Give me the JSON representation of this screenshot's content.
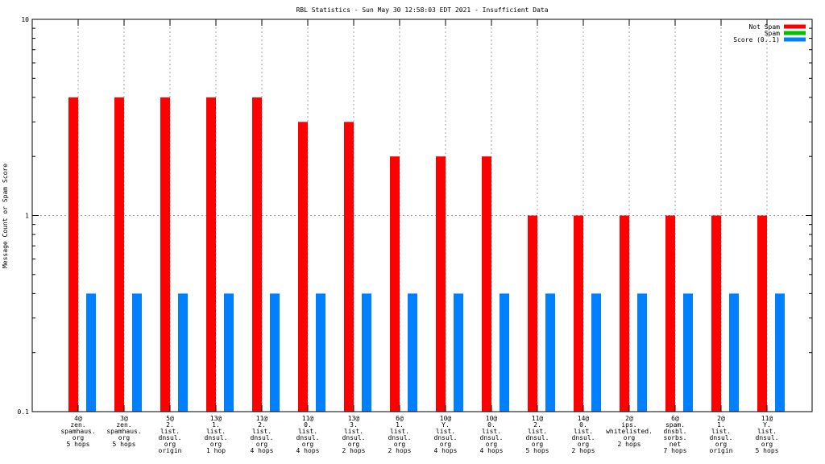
{
  "chart_data": {
    "type": "bar",
    "title": "RBL Statistics - Sun May 30 12:58:03 EDT 2021 - Insufficient Data",
    "ylabel": "Message Count or Spam Score",
    "xlabel": "",
    "yscale": "log",
    "ylim": [
      0.1,
      10
    ],
    "ytick_values": [
      0.1,
      1,
      10
    ],
    "ytick_labels": [
      "0.1",
      "1",
      "10"
    ],
    "grid": true,
    "legend_position": "top-right",
    "categories": [
      [
        "4@",
        "zen.",
        "spamhaus.",
        "org",
        "5 hops"
      ],
      [
        "3@",
        "zen.",
        "spamhaus.",
        "org",
        "5 hops"
      ],
      [
        "5@",
        "2.",
        "list.",
        "dnsul.",
        "org",
        "origin"
      ],
      [
        "13@",
        "1.",
        "list.",
        "dnsul.",
        "org",
        "1 hop"
      ],
      [
        "11@",
        "2.",
        "list.",
        "dnsul.",
        "org",
        "4 hops"
      ],
      [
        "11@",
        "0.",
        "list.",
        "dnsul.",
        "org",
        "4 hops"
      ],
      [
        "13@",
        "3.",
        "list.",
        "dnsul.",
        "org",
        "2 hops"
      ],
      [
        "6@",
        "1.",
        "list.",
        "dnsul.",
        "org",
        "2 hops"
      ],
      [
        "10@",
        "Y.",
        "list.",
        "dnsul.",
        "org",
        "4 hops"
      ],
      [
        "10@",
        "0.",
        "list.",
        "dnsul.",
        "org",
        "4 hops"
      ],
      [
        "11@",
        "2.",
        "list.",
        "dnsul.",
        "org",
        "5 hops"
      ],
      [
        "14@",
        "0.",
        "list.",
        "dnsul.",
        "org",
        "2 hops"
      ],
      [
        "2@",
        "ips.",
        "whitelisted.",
        "org",
        "2 hops"
      ],
      [
        "6@",
        "spam.",
        "dnsbl.",
        "sorbs.",
        "net",
        "7 hops"
      ],
      [
        "2@",
        "1.",
        "list.",
        "dnsul.",
        "org",
        "origin"
      ],
      [
        "11@",
        "Y.",
        "list.",
        "dnsul.",
        "org",
        "5 hops"
      ]
    ],
    "series": [
      {
        "name": "Not Spam",
        "color": "#ff0000",
        "values": [
          4,
          4,
          4,
          4,
          4,
          3,
          3,
          2,
          2,
          2,
          1,
          1,
          1,
          1,
          1,
          1
        ]
      },
      {
        "name": "Spam",
        "color": "#00c000",
        "values": [
          0,
          0,
          0,
          0,
          0,
          0,
          0,
          0,
          0,
          0,
          0,
          0,
          0,
          0,
          0,
          0
        ]
      },
      {
        "name": "Score (0..1)",
        "color": "#0080ff",
        "values": [
          0.4,
          0.4,
          0.4,
          0.4,
          0.4,
          0.4,
          0.4,
          0.4,
          0.4,
          0.4,
          0.4,
          0.4,
          0.4,
          0.4,
          0.4,
          0.4
        ]
      }
    ]
  }
}
